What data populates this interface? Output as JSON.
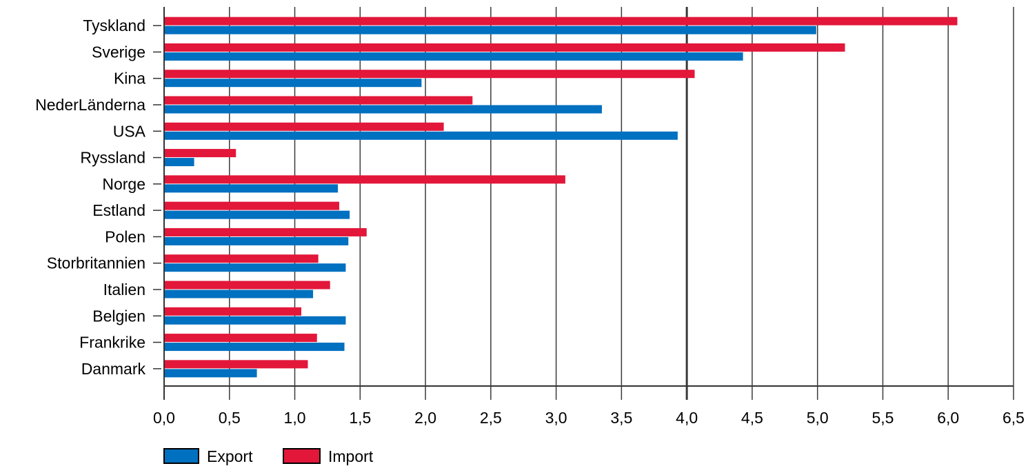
{
  "chart_data": {
    "type": "bar",
    "orientation": "horizontal",
    "categories": [
      "Tyskland",
      "Sverige",
      "Kina",
      "NederLänderna",
      "USA",
      "Ryssland",
      "Norge",
      "Estland",
      "Polen",
      "Storbritannien",
      "Italien",
      "Belgien",
      "Frankrike",
      "Danmark"
    ],
    "series": [
      {
        "name": "Import",
        "color": "#E2173A",
        "values": [
          6.07,
          5.21,
          4.06,
          2.36,
          2.14,
          0.55,
          3.07,
          1.34,
          1.55,
          1.18,
          1.27,
          1.05,
          1.17,
          1.1
        ]
      },
      {
        "name": "Export",
        "color": "#0070C0",
        "values": [
          4.99,
          4.43,
          1.97,
          3.35,
          3.93,
          0.23,
          1.33,
          1.42,
          1.41,
          1.39,
          1.14,
          1.39,
          1.38,
          0.71
        ]
      }
    ],
    "xlim": [
      0,
      6.5
    ],
    "xticks": [
      "0,0",
      "0,5",
      "1,0",
      "1,5",
      "2,0",
      "2,5",
      "3,0",
      "3,5",
      "4,0",
      "4,5",
      "5,0",
      "5,5",
      "6,0",
      "6,5"
    ],
    "xlabel": "",
    "ylabel": "",
    "grid": "vertical",
    "legend": {
      "position": "bottom-left",
      "items": [
        {
          "label": "Export",
          "color": "#0070C0"
        },
        {
          "label": "Import",
          "color": "#E2173A"
        }
      ]
    }
  }
}
